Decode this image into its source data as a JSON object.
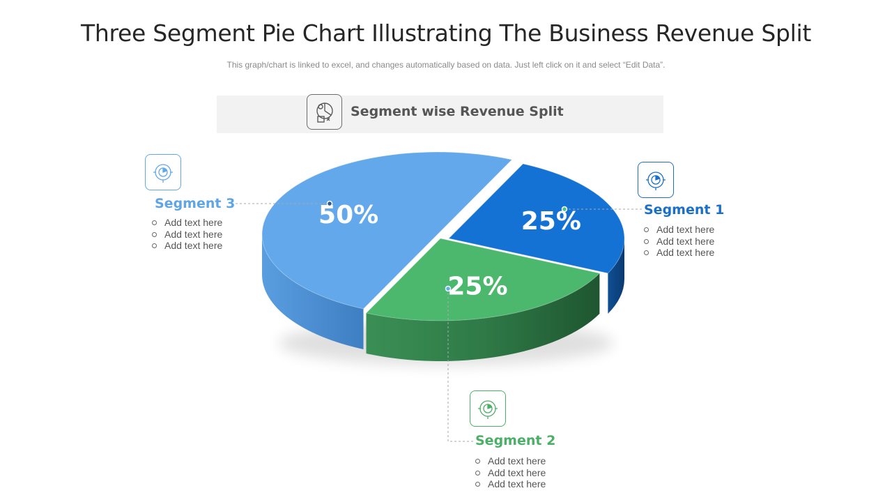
{
  "title": "Three Segment Pie Chart Illustrating The Business Revenue Split",
  "subtitle": "This graph/chart is linked to excel, and changes automatically based on data. Just left click on it and select “Edit Data”.",
  "banner": {
    "label": "Segment wise Revenue Split",
    "icon": "revenue-chart-icon"
  },
  "colors": {
    "segment_1": "#1372d4",
    "segment_2": "#4cb86e",
    "segment_3": "#63a8ea",
    "segment_1_label": "#1a70c8",
    "segment_2_label": "#4caf68",
    "segment_3_label": "#5fa5e6"
  },
  "chart_data": {
    "type": "pie",
    "title": "",
    "categories": [
      "Segment 1",
      "Segment 2",
      "Segment 3"
    ],
    "values": [
      25,
      25,
      50
    ],
    "data_labels": [
      "25%",
      "25%",
      "50%"
    ]
  },
  "segments": [
    {
      "name": "Segment 1",
      "icon": "pie-chart-icon",
      "bullets": [
        "Add text here",
        "Add text here",
        "Add text here"
      ]
    },
    {
      "name": "Segment 2",
      "icon": "pie-chart-icon",
      "bullets": [
        "Add text here",
        "Add text here",
        "Add text here"
      ]
    },
    {
      "name": "Segment 3",
      "icon": "pie-chart-icon",
      "bullets": [
        "Add text here",
        "Add text here",
        "Add text here"
      ]
    }
  ]
}
